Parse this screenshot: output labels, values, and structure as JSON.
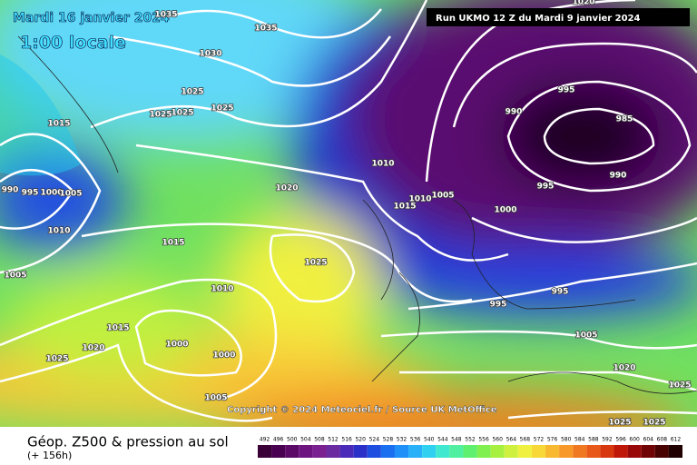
{
  "header": {
    "date": "Mardi 16 janvier 2024",
    "time": "1:00 locale",
    "run": "Run UKMO 12 Z du Mardi 9 janvier 2024"
  },
  "isobar_labels": [
    "1035",
    "1035",
    "1030",
    "1025",
    "1025",
    "1025",
    "1025",
    "1015",
    "1010",
    "1020",
    "990",
    "995",
    "1000",
    "1005",
    "1010",
    "1015",
    "1015",
    "1010",
    "1005",
    "1000",
    "1025",
    "1010",
    "1005",
    "1015",
    "1020",
    "1000",
    "1000",
    "1025",
    "1005",
    "995",
    "990",
    "985",
    "990",
    "995",
    "995",
    "995",
    "1005",
    "1020",
    "1025",
    "1025",
    "1025",
    "1020"
  ],
  "copyright": "Copyright © 2024 Meteociel.fr / Source UK MetOffice",
  "footer": {
    "title": "Géop. Z500 & pression au sol",
    "subtitle": "(+ 156h)"
  },
  "legend": {
    "ticks": [
      492,
      496,
      500,
      504,
      508,
      512,
      516,
      520,
      524,
      528,
      532,
      536,
      540,
      544,
      548,
      552,
      556,
      560,
      564,
      568,
      572,
      576,
      580,
      584,
      588,
      592,
      596,
      600,
      604,
      608,
      612
    ],
    "colors": [
      "#3a0038",
      "#4a0050",
      "#5c0a68",
      "#6e1480",
      "#7a2090",
      "#6a2aa0",
      "#4a2ab8",
      "#2a30c8",
      "#1e4ee0",
      "#1a6ef0",
      "#1e90f8",
      "#28b0f8",
      "#30d0f0",
      "#40e8d0",
      "#50f0a0",
      "#60f070",
      "#80f050",
      "#a8f040",
      "#d0f040",
      "#f0f040",
      "#f8d838",
      "#f8b830",
      "#f89828",
      "#f07820",
      "#e85818",
      "#d83810",
      "#c01808",
      "#980808",
      "#700404",
      "#480202",
      "#200000"
    ]
  }
}
